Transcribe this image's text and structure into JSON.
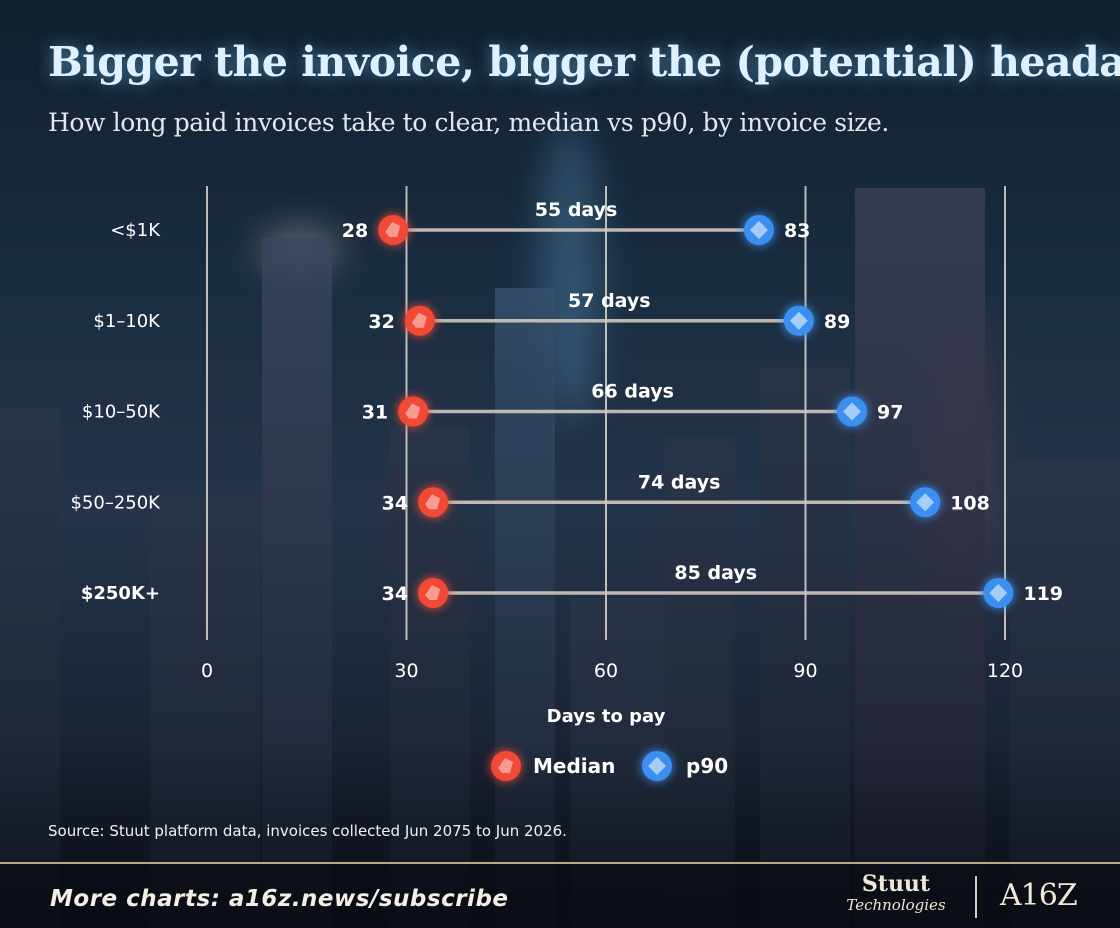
{
  "header": {
    "title": "Bigger the invoice, bigger the (potential) headache",
    "subtitle": "How long paid invoices take to clear, median vs p90, by invoice size."
  },
  "chart_data": {
    "type": "dumbbell",
    "categories": [
      "<$1K",
      "$1–10K",
      "$10–50K",
      "$50–250K",
      "$250K+"
    ],
    "series": [
      {
        "name": "Median",
        "values": [
          28,
          32,
          31,
          34,
          34
        ],
        "color": "#f04a34"
      },
      {
        "name": "p90",
        "values": [
          83,
          89,
          97,
          108,
          119
        ],
        "color": "#3a8ff0"
      }
    ],
    "gap_labels": [
      "55 days",
      "57 days",
      "66 days",
      "74 days",
      "85 days"
    ],
    "xlabel": "Days to pay",
    "xlim": [
      0,
      120
    ],
    "xticks": [
      0,
      30,
      60,
      90,
      120
    ],
    "grid": true,
    "legend_position": "bottom"
  },
  "source": "Source: Stuut platform data, invoices collected Jun 2075 to Jun 2026.",
  "footer": {
    "more_charts": "More charts: a16z.news/subscribe",
    "brand_1_line_1": "Stuut",
    "brand_1_line_2": "Technologies",
    "brand_2": "A16Z"
  }
}
